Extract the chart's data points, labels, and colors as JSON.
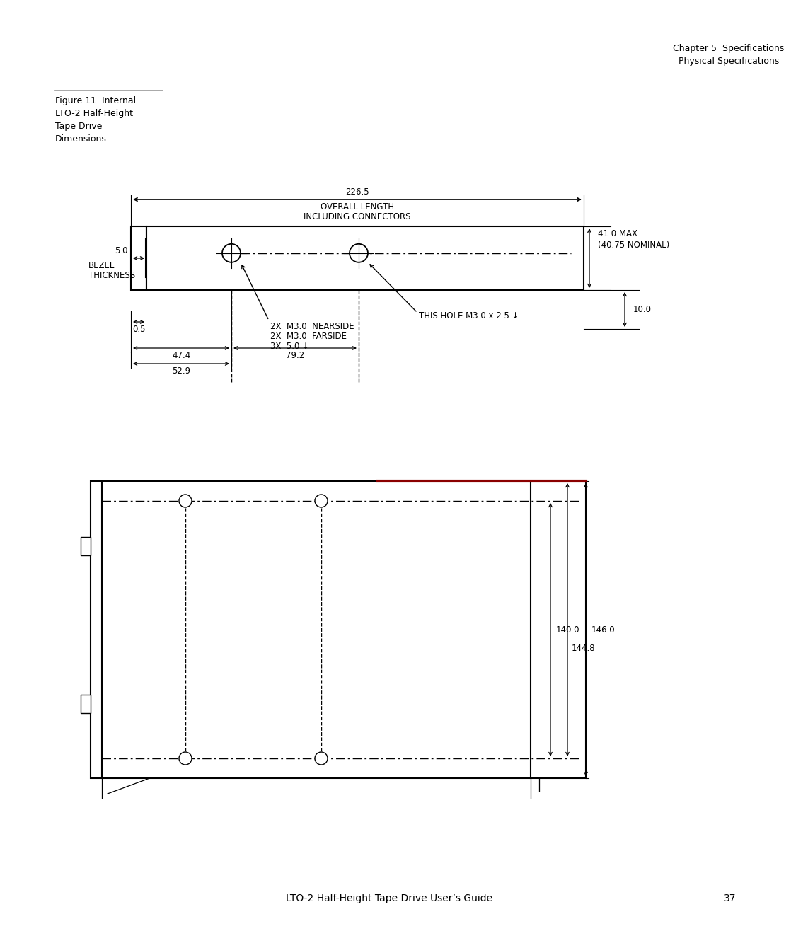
{
  "bg_color": "#ffffff",
  "text_color": "#000000",
  "line_color": "#000000",
  "chapter_text1": "Chapter 5  Specifications",
  "chapter_text2": "Physical Specifications",
  "figure_label1": "Figure 11  Internal",
  "figure_label2": "LTO-2 Half-Height",
  "figure_label3": "Tape Drive",
  "figure_label4": "Dimensions",
  "footer_text": "LTO-2 Half-Height Tape Drive User’s Guide",
  "footer_page": "37",
  "top_view": {
    "overall_length": "226.5",
    "overall_label1": "OVERALL LENGTH",
    "overall_label2": "INCLUDING CONNECTORS",
    "bezel_dim": "5.0",
    "bezel_label1": "BEZEL",
    "bezel_label2": "THICKNESS",
    "height_dim": "41.0 MAX",
    "height_dim2": "(40.75 NOMINAL)",
    "screw_label1": "2X  M3.0  NEARSIDE",
    "screw_label2": "2X  M3.0  FARSIDE",
    "screw_label3": "3X  5.0 ↓",
    "hole_label": "THIS HOLE M3.0 x 2.5 ↓",
    "dim_05": "0.5",
    "dim_474": "47.4",
    "dim_792": "79.2",
    "dim_529": "52.9",
    "dim_100": "10.0"
  },
  "side_view": {
    "dim_140": "140.0",
    "dim_146": "146.0",
    "dim_1448": "144.8"
  }
}
